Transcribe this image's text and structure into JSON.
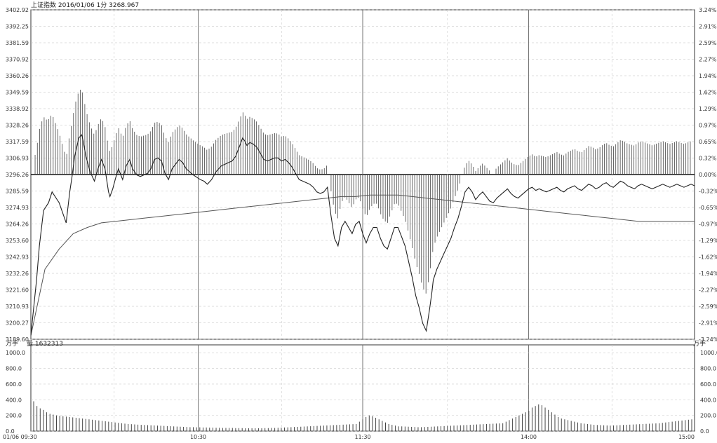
{
  "header": {
    "title": "上证指数 2016/01/06 1分 3268.967",
    "volume_label": "量 1632313"
  },
  "units": {
    "left_vol": "万手",
    "right_vol": "万手"
  },
  "chart_data": [
    {
      "type": "line",
      "title": "上证指数 2016/01/06 1分 3268.967",
      "x_ticks": [
        "01/06 09:30",
        "10:30",
        "11:30",
        "14:00",
        "15:00"
      ],
      "y_ticks_left": [
        "3402.92",
        "3392.25",
        "3381.59",
        "3370.92",
        "3360.26",
        "3349.59",
        "3338.92",
        "3328.26",
        "3317.59",
        "3306.93",
        "3296.26",
        "3285.59",
        "3274.93",
        "3264.26",
        "3253.60",
        "3242.93",
        "3232.26",
        "3221.60",
        "3210.93",
        "3200.27",
        "3189.60"
      ],
      "y_ticks_right": [
        "3.24%",
        "2.91%",
        "2.59%",
        "2.27%",
        "1.94%",
        "1.62%",
        "1.29%",
        "0.97%",
        "0.65%",
        "0.32%",
        "0.00%",
        "-0.32%",
        "-0.65%",
        "-0.97%",
        "-1.29%",
        "-1.62%",
        "-1.94%",
        "-2.27%",
        "-2.59%",
        "-2.91%",
        "-3.24%"
      ],
      "ylim": [
        3189.6,
        3402.92
      ],
      "base_value": 3296.26,
      "series": [
        {
          "role": "price",
          "color": "#222222",
          "x": [
            0,
            4,
            8,
            12,
            18,
            25,
            30,
            40,
            50,
            55,
            58,
            62,
            68,
            72,
            74,
            78,
            84,
            90,
            95,
            100,
            105,
            110,
            112,
            116,
            120,
            124,
            130,
            135,
            140,
            144,
            150,
            155,
            160,
            165,
            170,
            175,
            180,
            185,
            190,
            195,
            200,
            210,
            215,
            220,
            230,
            240,
            245,
            250,
            256,
            262,
            270,
            275,
            280,
            285,
            290,
            295,
            300,
            303,
            306,
            310,
            315,
            320,
            325,
            330,
            335,
            340,
            345,
            350,
            355,
            360,
            365,
            370,
            375,
            380,
            385,
            390,
            395,
            400,
            405,
            410,
            415,
            420,
            425,
            430,
            435,
            440,
            445,
            450,
            455,
            460,
            465,
            470,
            475,
            480,
            485,
            490,
            495,
            500,
            505,
            510,
            515,
            520,
            525,
            530,
            535,
            540,
            545,
            550,
            555,
            560,
            565,
            568,
            570,
            575,
            580,
            585,
            590,
            595,
            600,
            605,
            610,
            615,
            620,
            625,
            630,
            635,
            640,
            645,
            650,
            655,
            660,
            665,
            670,
            675,
            680,
            685,
            690,
            695,
            700,
            705,
            710,
            715,
            720,
            725,
            730,
            735,
            740,
            745,
            750,
            755,
            760,
            765,
            770,
            775,
            780,
            785,
            790,
            795,
            800,
            805,
            810,
            815,
            820,
            825,
            830,
            835,
            840,
            845,
            850,
            855,
            860,
            865,
            870,
            875,
            880,
            885,
            890,
            895,
            900,
            905,
            910,
            915,
            920,
            925,
            930,
            935,
            940
          ],
          "y": [
            3192,
            3210,
            3228,
            3250,
            3273,
            3278,
            3285,
            3278,
            3265,
            3285,
            3294,
            3308,
            3320,
            3322,
            3318,
            3308,
            3298,
            3292,
            3300,
            3306,
            3300,
            3285,
            3282,
            3287,
            3294,
            3300,
            3293,
            3302,
            3306,
            3300,
            3296,
            3295,
            3296,
            3297,
            3300,
            3306,
            3307,
            3305,
            3297,
            3293,
            3300,
            3306,
            3304,
            3300,
            3296,
            3293,
            3292,
            3290,
            3293,
            3298,
            3302,
            3303,
            3304,
            3305,
            3308,
            3314,
            3320,
            3318,
            3315,
            3317,
            3316,
            3314,
            3310,
            3306,
            3305,
            3306,
            3307,
            3307,
            3305,
            3306,
            3304,
            3301,
            3297,
            3293,
            3292,
            3291,
            3290,
            3288,
            3285,
            3284,
            3285,
            3288,
            3270,
            3255,
            3250,
            3262,
            3266,
            3262,
            3258,
            3264,
            3266,
            3258,
            3252,
            3258,
            3262,
            3262,
            3255,
            3250,
            3248,
            3255,
            3262,
            3262,
            3256,
            3250,
            3240,
            3230,
            3218,
            3210,
            3200,
            3195,
            3210,
            3220,
            3228,
            3235,
            3240,
            3245,
            3250,
            3255,
            3262,
            3268,
            3276,
            3285,
            3288,
            3285,
            3280,
            3283,
            3285,
            3282,
            3279,
            3278,
            3281,
            3283,
            3285,
            3287,
            3284,
            3282,
            3281,
            3283,
            3285,
            3287,
            3288,
            3286,
            3287,
            3286,
            3285,
            3286,
            3287,
            3288,
            3286,
            3285,
            3287,
            3288,
            3289,
            3287,
            3286,
            3288,
            3290,
            3289,
            3287,
            3288,
            3290,
            3291,
            3289,
            3288,
            3290,
            3292,
            3291,
            3289,
            3288,
            3287,
            3289,
            3290,
            3289,
            3288,
            3287,
            3288,
            3289,
            3290,
            3289,
            3288,
            3289,
            3290,
            3289,
            3288,
            3289,
            3290,
            3289
          ]
        },
        {
          "role": "average",
          "color": "#555555",
          "x": [
            0,
            20,
            40,
            60,
            80,
            100,
            120,
            140,
            160,
            180,
            200,
            220,
            240,
            260,
            280,
            300,
            320,
            340,
            360,
            380,
            400,
            420,
            440,
            460,
            480,
            500,
            520,
            540,
            560,
            580,
            600,
            620,
            640,
            660,
            680,
            700,
            720,
            740,
            760,
            780,
            800,
            820,
            840,
            860,
            880,
            900,
            920,
            940
          ],
          "y": [
            3192,
            3235,
            3248,
            3258,
            3262,
            3265,
            3266,
            3267,
            3268,
            3269,
            3270,
            3271,
            3272,
            3273,
            3274,
            3275,
            3276,
            3277,
            3278,
            3279,
            3280,
            3281,
            3282,
            3282,
            3283,
            3283,
            3283,
            3282,
            3281,
            3280,
            3279,
            3278,
            3277,
            3276,
            3275,
            3274,
            3273,
            3272,
            3271,
            3270,
            3269,
            3268,
            3267,
            3266,
            3266,
            3266,
            3266,
            3266
          ]
        }
      ]
    },
    {
      "type": "bar",
      "title": "量 1632313",
      "y_ticks": [
        "1000.0",
        "800.0",
        "600.0",
        "400.0",
        "200.0",
        "0.0"
      ],
      "ylim": [
        0,
        1100
      ],
      "bar_color": "#444444",
      "values": [
        380,
        320,
        290,
        270,
        240,
        220,
        210,
        200,
        195,
        190,
        185,
        180,
        175,
        170,
        165,
        160,
        155,
        150,
        145,
        140,
        135,
        130,
        125,
        120,
        115,
        110,
        105,
        100,
        95,
        90,
        88,
        85,
        82,
        80,
        78,
        76,
        74,
        72,
        70,
        68,
        66,
        64,
        62,
        60,
        58,
        56,
        54,
        52,
        50,
        50,
        48,
        48,
        46,
        46,
        44,
        44,
        42,
        42,
        40,
        40,
        40,
        40,
        38,
        38,
        38,
        36,
        36,
        36,
        36,
        36,
        36,
        38,
        38,
        40,
        40,
        42,
        44,
        46,
        48,
        50,
        52,
        54,
        56,
        58,
        60,
        62,
        64,
        66,
        68,
        70,
        72,
        74,
        76,
        78,
        80,
        82,
        84,
        86,
        88,
        90,
        120,
        150,
        180,
        200,
        190,
        170,
        150,
        130,
        110,
        90,
        80,
        70,
        60,
        60,
        58,
        56,
        54,
        52,
        50,
        50,
        52,
        54,
        56,
        58,
        60,
        62,
        64,
        66,
        68,
        70,
        72,
        74,
        76,
        78,
        80,
        82,
        84,
        86,
        88,
        90,
        92,
        94,
        96,
        98,
        100,
        120,
        140,
        160,
        180,
        200,
        220,
        240,
        260,
        300,
        320,
        340,
        330,
        300,
        270,
        240,
        210,
        180,
        160,
        150,
        140,
        130,
        120,
        110,
        100,
        95,
        90,
        85,
        80,
        78,
        76,
        74,
        72,
        70,
        72,
        74,
        76,
        78,
        80,
        82,
        84,
        86,
        88,
        90,
        92,
        94,
        96,
        98,
        100,
        105,
        110,
        115,
        120,
        125,
        130,
        135,
        140,
        145,
        150
      ]
    }
  ]
}
